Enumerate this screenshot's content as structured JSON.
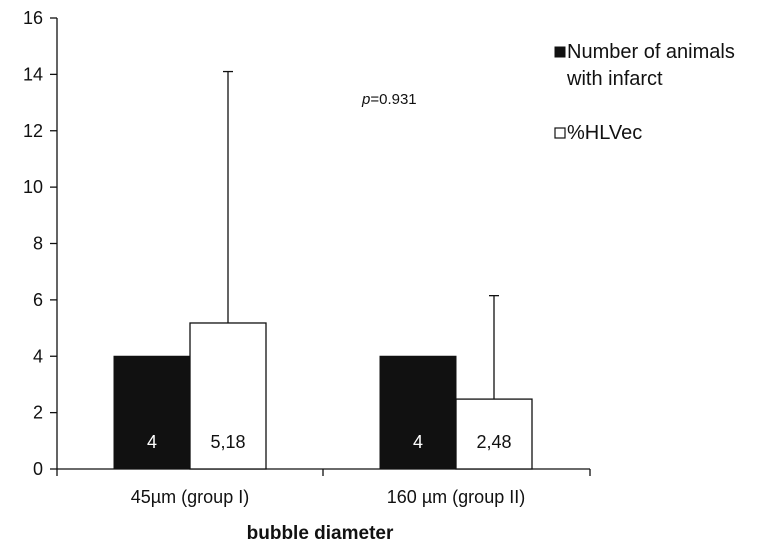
{
  "chart_data": {
    "type": "bar",
    "title": "",
    "xlabel": "bubble diameter",
    "ylabel": "",
    "ylim": [
      0,
      16
    ],
    "yticks": [
      0,
      2,
      4,
      6,
      8,
      10,
      12,
      14,
      16
    ],
    "categories": [
      "45µm (group I)",
      "160 µm (group II)"
    ],
    "series": [
      {
        "name": "Number of animals with infarct",
        "legend_lines": [
          "Number of animals",
          "with infarct"
        ],
        "color": "#111111",
        "values": [
          4,
          4
        ],
        "value_labels": [
          "4",
          "4"
        ]
      },
      {
        "name": "%HLVec",
        "legend_lines": [
          "%HLVec"
        ],
        "color": "#ffffff",
        "values": [
          5.18,
          2.48
        ],
        "value_labels": [
          "5,18",
          "2,48"
        ],
        "error_upper": [
          14.1,
          6.15
        ]
      }
    ],
    "annotation": {
      "italic": "p",
      "text": "=0.931"
    },
    "legend_position": "top-right",
    "grid": false
  }
}
